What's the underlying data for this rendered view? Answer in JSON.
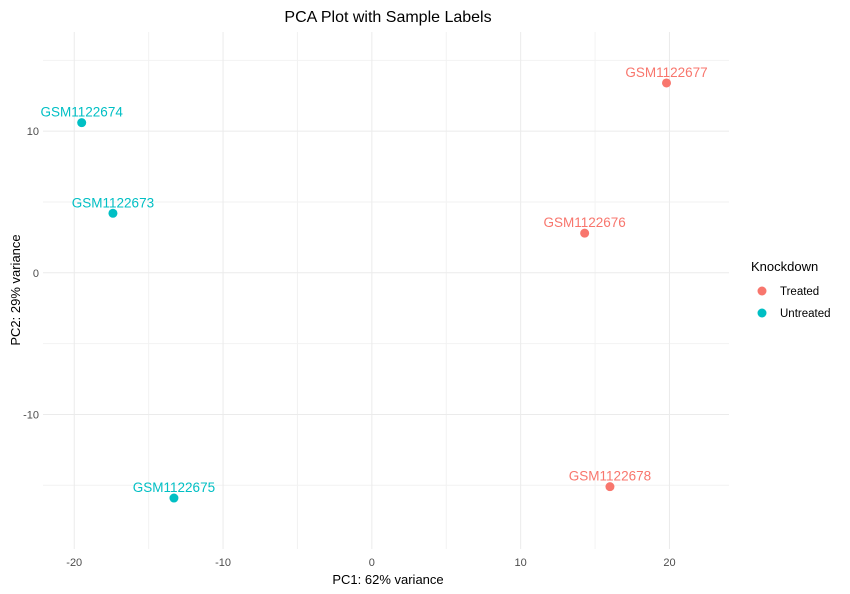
{
  "chart_data": {
    "type": "scatter",
    "title": "PCA Plot with Sample Labels",
    "xlabel": "PC1: 62% variance",
    "ylabel": "PC2: 29% variance",
    "xlim": [
      -22.1,
      24.0
    ],
    "ylim": [
      -19.5,
      17.0
    ],
    "x_ticks": [
      -20,
      -10,
      0,
      10,
      20
    ],
    "x_tick_labels": [
      "-20",
      "-10",
      "0",
      "10",
      "20"
    ],
    "y_ticks": [
      -10,
      0,
      10
    ],
    "y_tick_labels": [
      "-10",
      "0",
      "10"
    ],
    "grid": true,
    "legend": {
      "title": "Knockdown",
      "position": "right",
      "entries": [
        {
          "label": "Treated",
          "color": "#F8766D"
        },
        {
          "label": "Untreated",
          "color": "#00BFC4"
        }
      ]
    },
    "series": [
      {
        "name": "Treated",
        "color": "#F8766D",
        "points": [
          {
            "label": "GSM1122676",
            "x": 14.3,
            "y": 2.8
          },
          {
            "label": "GSM1122677",
            "x": 19.8,
            "y": 13.4
          },
          {
            "label": "GSM1122678",
            "x": 16.0,
            "y": -15.1
          }
        ]
      },
      {
        "name": "Untreated",
        "color": "#00BFC4",
        "points": [
          {
            "label": "GSM1122673",
            "x": -17.4,
            "y": 4.2
          },
          {
            "label": "GSM1122674",
            "x": -19.5,
            "y": 10.6
          },
          {
            "label": "GSM1122675",
            "x": -13.3,
            "y": -15.9
          }
        ]
      }
    ]
  }
}
